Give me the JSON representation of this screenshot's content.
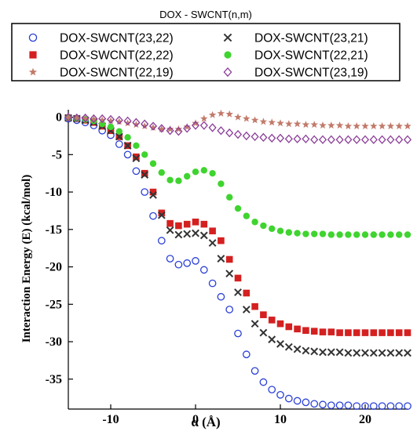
{
  "chart_data": {
    "type": "scatter",
    "title": "DOX - SWCNT(n,m)",
    "xlabel": "α (Å)",
    "ylabel": "Interaction Energy (E) (kcal/mol)",
    "xlim": [
      -15,
      25
    ],
    "ylim": [
      -39,
      1
    ],
    "xticks": [
      -10,
      0,
      10,
      20
    ],
    "yticks": [
      0,
      -5,
      -10,
      -15,
      -20,
      -25,
      -30,
      -35
    ],
    "grid": false,
    "legend_position": "top",
    "series": [
      {
        "name": "DOX-SWCNT(23,22)",
        "marker": "circle-open",
        "color": "#2a3fd6",
        "x": [
          -15,
          -14,
          -13,
          -12,
          -11,
          -10,
          -9,
          -8,
          -7,
          -6,
          -5,
          -4,
          -3,
          -2,
          -1,
          0,
          1,
          2,
          3,
          4,
          5,
          6,
          7,
          8,
          9,
          10,
          11,
          12,
          13,
          14,
          15,
          16,
          17,
          18,
          19,
          20,
          21,
          22,
          23,
          24,
          25
        ],
        "y": [
          -0.2,
          -0.4,
          -0.7,
          -1.1,
          -1.8,
          -2.4,
          -3.6,
          -5.0,
          -7.2,
          -10.0,
          -13.2,
          -16.5,
          -18.9,
          -19.7,
          -19.5,
          -19.2,
          -20.4,
          -22.2,
          -24.0,
          -25.7,
          -28.9,
          -31.7,
          -33.9,
          -35.4,
          -36.4,
          -37.1,
          -37.6,
          -37.9,
          -38.1,
          -38.3,
          -38.4,
          -38.5,
          -38.5,
          -38.5,
          -38.6,
          -38.6,
          -38.6,
          -38.6,
          -38.6,
          -38.6,
          -38.6
        ]
      },
      {
        "name": "DOX-SWCNT(22,22)",
        "marker": "square",
        "color": "#d42020",
        "x": [
          -15,
          -14,
          -13,
          -12,
          -11,
          -10,
          -9,
          -8,
          -7,
          -6,
          -5,
          -4,
          -3,
          -2,
          -1,
          0,
          1,
          2,
          3,
          4,
          5,
          6,
          7,
          8,
          9,
          10,
          11,
          12,
          13,
          14,
          15,
          16,
          17,
          18,
          19,
          20,
          21,
          22,
          23,
          24,
          25
        ],
        "y": [
          -0.1,
          -0.2,
          -0.4,
          -0.7,
          -1.2,
          -1.8,
          -2.6,
          -3.8,
          -5.3,
          -7.5,
          -10.0,
          -12.8,
          -14.2,
          -14.5,
          -14.3,
          -14.0,
          -14.3,
          -15.2,
          -16.5,
          -19.0,
          -21.5,
          -23.5,
          -25.3,
          -26.4,
          -27.1,
          -27.6,
          -28.0,
          -28.3,
          -28.5,
          -28.6,
          -28.7,
          -28.7,
          -28.8,
          -28.8,
          -28.8,
          -28.8,
          -28.8,
          -28.8,
          -28.8,
          -28.8,
          -28.8
        ]
      },
      {
        "name": "DOX-SWCNT(22,19)",
        "marker": "star",
        "color": "#c27a6a",
        "x": [
          -15,
          -14,
          -13,
          -12,
          -11,
          -10,
          -9,
          -8,
          -7,
          -6,
          -5,
          -4,
          -3,
          -2,
          -1,
          0,
          1,
          2,
          3,
          4,
          5,
          6,
          7,
          8,
          9,
          10,
          11,
          12,
          13,
          14,
          15,
          16,
          17,
          18,
          19,
          20,
          21,
          22,
          23,
          24,
          25
        ],
        "y": [
          -0.1,
          -0.1,
          -0.2,
          -0.3,
          -0.4,
          -0.5,
          -0.6,
          -0.8,
          -1.0,
          -1.2,
          -1.4,
          -1.6,
          -1.6,
          -1.6,
          -1.3,
          -0.8,
          -0.2,
          0.3,
          0.5,
          0.4,
          0.0,
          -0.2,
          -0.4,
          -0.6,
          -0.7,
          -0.8,
          -0.9,
          -0.9,
          -1.0,
          -1.0,
          -1.1,
          -1.1,
          -1.1,
          -1.2,
          -1.2,
          -1.2,
          -1.2,
          -1.2,
          -1.2,
          -1.2,
          -1.2
        ]
      },
      {
        "name": "DOX-SWCNT(23,21)",
        "marker": "x",
        "color": "#333333",
        "x": [
          -15,
          -14,
          -13,
          -12,
          -11,
          -10,
          -9,
          -8,
          -7,
          -6,
          -5,
          -4,
          -3,
          -2,
          -1,
          0,
          1,
          2,
          3,
          4,
          5,
          6,
          7,
          8,
          9,
          10,
          11,
          12,
          13,
          14,
          15,
          16,
          17,
          18,
          19,
          20,
          21,
          22,
          23,
          24,
          25
        ],
        "y": [
          -0.1,
          -0.2,
          -0.4,
          -0.7,
          -1.2,
          -1.8,
          -2.6,
          -3.8,
          -5.5,
          -7.7,
          -10.4,
          -13.1,
          -15.1,
          -15.7,
          -15.6,
          -15.5,
          -15.8,
          -16.8,
          -18.9,
          -20.9,
          -23.4,
          -25.7,
          -27.6,
          -28.8,
          -29.7,
          -30.3,
          -30.7,
          -31.0,
          -31.2,
          -31.3,
          -31.4,
          -31.4,
          -31.4,
          -31.5,
          -31.5,
          -31.5,
          -31.5,
          -31.5,
          -31.5,
          -31.5,
          -31.5
        ]
      },
      {
        "name": "DOX-SWCNT(22,21)",
        "marker": "circle",
        "color": "#3fd42f",
        "x": [
          -15,
          -14,
          -13,
          -12,
          -11,
          -10,
          -9,
          -8,
          -7,
          -6,
          -5,
          -4,
          -3,
          -2,
          -1,
          0,
          1,
          2,
          3,
          4,
          5,
          6,
          7,
          8,
          9,
          10,
          11,
          12,
          13,
          14,
          15,
          16,
          17,
          18,
          19,
          20,
          21,
          22,
          23,
          24,
          25
        ],
        "y": [
          -0.1,
          -0.2,
          -0.3,
          -0.5,
          -0.9,
          -1.3,
          -1.9,
          -2.7,
          -3.8,
          -5.0,
          -6.2,
          -7.4,
          -8.4,
          -8.5,
          -7.9,
          -7.3,
          -7.1,
          -7.5,
          -8.9,
          -10.7,
          -12.2,
          -13.2,
          -14.0,
          -14.5,
          -14.9,
          -15.2,
          -15.4,
          -15.5,
          -15.6,
          -15.6,
          -15.6,
          -15.7,
          -15.7,
          -15.7,
          -15.7,
          -15.7,
          -15.7,
          -15.7,
          -15.7,
          -15.7,
          -15.7
        ]
      },
      {
        "name": "DOX-SWCNT(23,19)",
        "marker": "diamond-open",
        "color": "#8b3d99",
        "x": [
          -15,
          -14,
          -13,
          -12,
          -11,
          -10,
          -9,
          -8,
          -7,
          -6,
          -5,
          -4,
          -3,
          -2,
          -1,
          0,
          1,
          2,
          3,
          4,
          5,
          6,
          7,
          8,
          9,
          10,
          11,
          12,
          13,
          14,
          15,
          16,
          17,
          18,
          19,
          20,
          21,
          22,
          23,
          24,
          25
        ],
        "y": [
          0.0,
          -0.1,
          -0.1,
          -0.2,
          -0.2,
          -0.3,
          -0.4,
          -0.5,
          -0.7,
          -0.9,
          -1.2,
          -1.5,
          -1.8,
          -1.9,
          -1.5,
          -1.1,
          -1.1,
          -1.4,
          -1.8,
          -2.1,
          -2.3,
          -2.5,
          -2.6,
          -2.7,
          -2.8,
          -2.8,
          -2.9,
          -2.9,
          -2.9,
          -3.0,
          -3.0,
          -3.0,
          -3.0,
          -3.0,
          -3.0,
          -3.0,
          -3.0,
          -3.0,
          -3.0,
          -3.0,
          -3.0
        ]
      }
    ]
  }
}
